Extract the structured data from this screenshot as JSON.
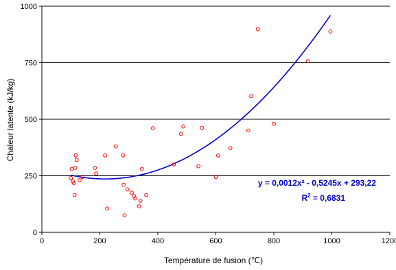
{
  "chart_data": {
    "type": "scatter",
    "xlabel": "Température de fusion (℃)",
    "ylabel": "Chaleur latente (kJ/kg)",
    "xlim": [
      0,
      1200
    ],
    "ylim": [
      0,
      1000
    ],
    "x_ticks": [
      0,
      200,
      400,
      600,
      800,
      1000,
      1200
    ],
    "y_ticks": [
      0,
      250,
      500,
      750,
      1000
    ],
    "grid": "horizontal",
    "legend": "none",
    "colors": {
      "points": "#ff0000",
      "trendline": "#0000cc",
      "annotation": "#0000cc"
    },
    "points": [
      {
        "x": 100,
        "y": 240
      },
      {
        "x": 103,
        "y": 280
      },
      {
        "x": 107,
        "y": 225
      },
      {
        "x": 110,
        "y": 218
      },
      {
        "x": 113,
        "y": 165
      },
      {
        "x": 115,
        "y": 285
      },
      {
        "x": 117,
        "y": 340
      },
      {
        "x": 120,
        "y": 320
      },
      {
        "x": 130,
        "y": 230
      },
      {
        "x": 140,
        "y": 245
      },
      {
        "x": 183,
        "y": 285
      },
      {
        "x": 187,
        "y": 260
      },
      {
        "x": 218,
        "y": 340
      },
      {
        "x": 225,
        "y": 105
      },
      {
        "x": 255,
        "y": 380
      },
      {
        "x": 280,
        "y": 340
      },
      {
        "x": 282,
        "y": 210
      },
      {
        "x": 285,
        "y": 75
      },
      {
        "x": 295,
        "y": 190
      },
      {
        "x": 310,
        "y": 175
      },
      {
        "x": 318,
        "y": 160
      },
      {
        "x": 322,
        "y": 150
      },
      {
        "x": 335,
        "y": 115
      },
      {
        "x": 340,
        "y": 140
      },
      {
        "x": 345,
        "y": 280
      },
      {
        "x": 360,
        "y": 165
      },
      {
        "x": 383,
        "y": 460
      },
      {
        "x": 455,
        "y": 300
      },
      {
        "x": 480,
        "y": 435
      },
      {
        "x": 488,
        "y": 468
      },
      {
        "x": 540,
        "y": 292
      },
      {
        "x": 552,
        "y": 462
      },
      {
        "x": 600,
        "y": 245
      },
      {
        "x": 608,
        "y": 340
      },
      {
        "x": 650,
        "y": 372
      },
      {
        "x": 712,
        "y": 450
      },
      {
        "x": 722,
        "y": 602
      },
      {
        "x": 745,
        "y": 898
      },
      {
        "x": 800,
        "y": 480
      },
      {
        "x": 918,
        "y": 757
      },
      {
        "x": 995,
        "y": 888
      }
    ],
    "trendline": {
      "type": "polynomial",
      "a": 0.0012,
      "b": -0.5245,
      "c": 293.22,
      "x_range": [
        100,
        995
      ]
    },
    "annotations": {
      "equation": "y = 0,0012x² - 0,5245x + 293,22",
      "r_squared_prefix": "R",
      "r_squared_exp": "2",
      "r_squared_value": " = 0,6831"
    }
  }
}
